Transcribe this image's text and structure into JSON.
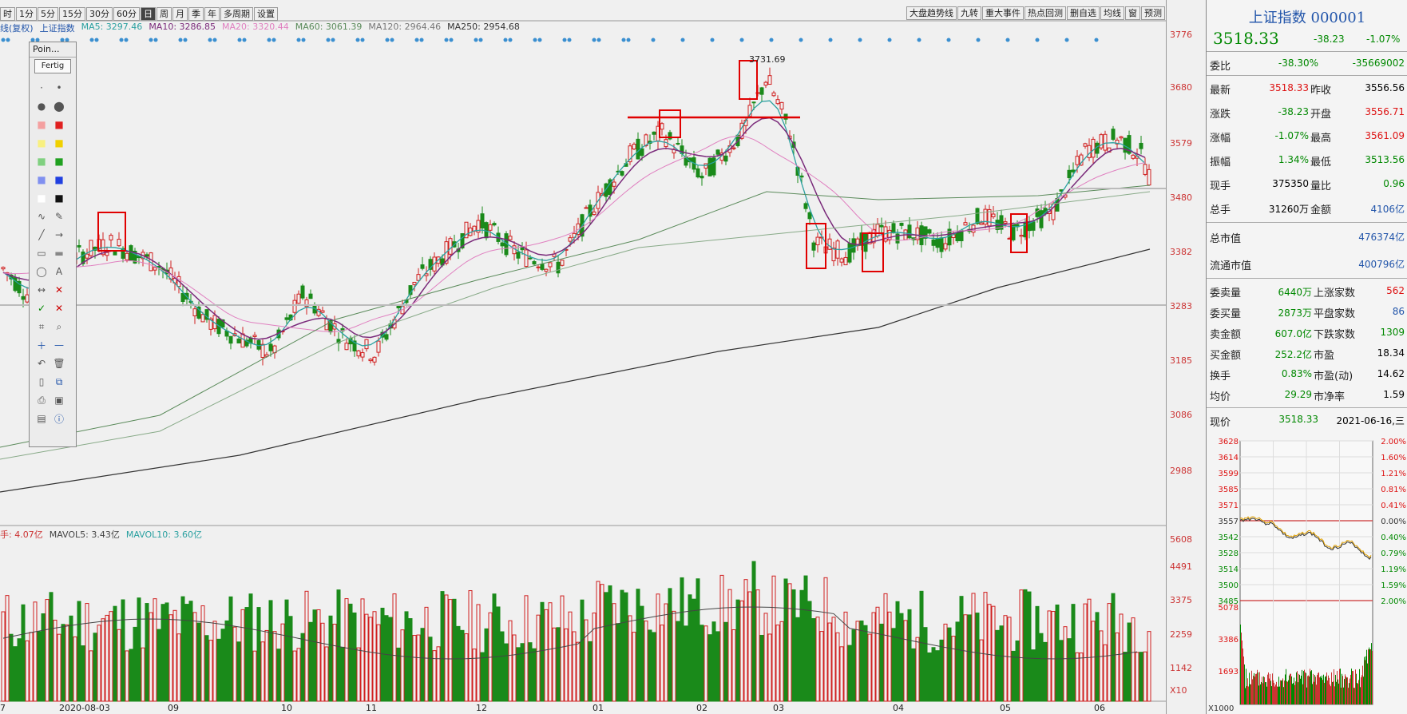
{
  "toolbar": {
    "left": [
      "时",
      "1分",
      "5分",
      "15分",
      "30分",
      "60分",
      "日",
      "周",
      "月",
      "季",
      "年",
      "多周期",
      "设置"
    ],
    "active": "日",
    "right": [
      "大盘趋势线",
      "九转",
      "重大事件",
      "热点回测",
      "删自选",
      "均线",
      "窗",
      "预测"
    ]
  },
  "legend": {
    "index": "上证指数",
    "adj": "线(复权)",
    "ma5": "MA5: 3297.46",
    "ma10": "MA10: 3286.85",
    "ma20": "MA20: 3320.44",
    "ma60": "MA60: 3061.39",
    "ma120": "MA120: 2964.46",
    "ma250": "MA250: 2954.68"
  },
  "vol_legend": {
    "v": "手: 4.07亿",
    "mavol5": "MAVOL5: 3.43亿",
    "mavol10": "MAVOL10: 3.60亿"
  },
  "y_axis": [
    "3776",
    "3680",
    "3579",
    "3480",
    "3382",
    "3283",
    "3185",
    "3086",
    "2988"
  ],
  "vol_axis": [
    "5608",
    "4491",
    "3375",
    "2259",
    "1142",
    "X10"
  ],
  "x_axis": [
    "7",
    "2020-08-03",
    "09",
    "10",
    "11",
    "12",
    "01",
    "02",
    "03",
    "04",
    "05",
    "06"
  ],
  "annotations": {
    "peak": "3731.69"
  },
  "toolbox": {
    "title": "Poin...",
    "done": "Fertig"
  },
  "colors": {
    "up": "#d02020",
    "down": "#1a8a1a",
    "ma5": "#2aa0a0",
    "ma10": "#7a2a7a",
    "ma20": "#e080c0",
    "ma60": "#5a8a5a",
    "ma250": "#333333",
    "box": "#e00000"
  },
  "panel": {
    "title": "上证指数 000001",
    "price": "3518.33",
    "change": "-38.23",
    "pct": "-1.07%",
    "weibi_lbl": "委比",
    "weibi": "-38.30%",
    "weicha": "-35669002",
    "rows": [
      {
        "l1": "最新",
        "v1": "3518.33",
        "l2": "昨收",
        "v2": "3556.56",
        "c1": "red",
        "c2": "black"
      },
      {
        "l1": "涨跌",
        "v1": "-38.23",
        "l2": "开盘",
        "v2": "3556.71",
        "c1": "green",
        "c2": "red"
      },
      {
        "l1": "涨幅",
        "v1": "-1.07%",
        "l2": "最高",
        "v2": "3561.09",
        "c1": "green",
        "c2": "red"
      },
      {
        "l1": "振幅",
        "v1": "1.34%",
        "l2": "最低",
        "v2": "3513.56",
        "c1": "green",
        "c2": "green"
      },
      {
        "l1": "现手",
        "v1": "375350",
        "l2": "量比",
        "v2": "0.96",
        "c1": "black",
        "c2": "green"
      },
      {
        "l1": "总手",
        "v1": "31260万",
        "l2": "金额",
        "v2": "4106亿",
        "c1": "black",
        "c2": "blue"
      }
    ],
    "zsz_lbl": "总市值",
    "zsz": "476374亿",
    "ltsz_lbl": "流通市值",
    "ltsz": "400796亿",
    "rows2": [
      {
        "l1": "委卖量",
        "v1": "6440万",
        "l2": "上涨家数",
        "v2": "562",
        "c2": "red"
      },
      {
        "l1": "委买量",
        "v1": "2873万",
        "l2": "平盘家数",
        "v2": "86",
        "c2": "blue"
      },
      {
        "l1": "卖金额",
        "v1": "607.0亿",
        "l2": "下跌家数",
        "v2": "1309",
        "c2": "green"
      },
      {
        "l1": "买金额",
        "v1": "252.2亿",
        "l2": "市盈",
        "v2": "18.34",
        "c2": "black"
      },
      {
        "l1": "换手",
        "v1": "0.83%",
        "l2": "市盈(动)",
        "v2": "14.62",
        "c2": "black"
      },
      {
        "l1": "均价",
        "v1": "29.29",
        "l2": "市净率",
        "v2": "1.59",
        "c2": "black"
      }
    ],
    "xianjia_lbl": "现价",
    "xianjia": "3518.33",
    "date": "2021-06-16,三",
    "mini_left": [
      "3628",
      "3614",
      "3599",
      "3585",
      "3571",
      "3557",
      "3542",
      "3528",
      "3514",
      "3500",
      "3485"
    ],
    "mini_right": [
      "2.00%",
      "1.60%",
      "1.21%",
      "0.81%",
      "0.41%",
      "0.00%",
      "0.40%",
      "0.79%",
      "1.19%",
      "1.59%",
      "2.00%"
    ],
    "mini_vol": [
      "5078",
      "3386",
      "1693",
      "X1000"
    ]
  }
}
